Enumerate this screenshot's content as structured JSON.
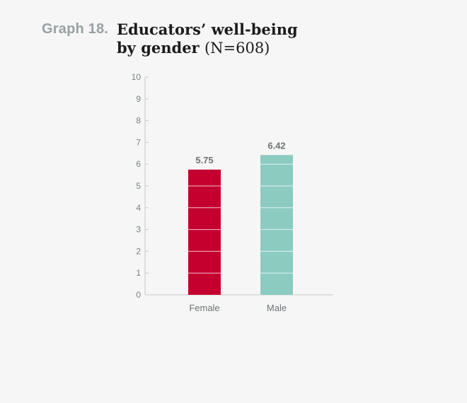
{
  "header": {
    "graph_number": "Graph 18.",
    "title_line1": "Educators’ well-being",
    "title_line2_main": "by gender",
    "title_line2_suffix": "(N=608)"
  },
  "chart_data": {
    "type": "bar",
    "categories": [
      "Female",
      "Male"
    ],
    "values": [
      5.75,
      6.42
    ],
    "value_labels": [
      "5.75",
      "6.42"
    ],
    "ylim": [
      0,
      10
    ],
    "yticks": [
      "0",
      "1",
      "2",
      "3",
      "4",
      "5",
      "6",
      "7",
      "8",
      "9",
      "10"
    ],
    "xlabel": "",
    "ylabel": "",
    "grid": false,
    "colors": [
      "#c4002f",
      "#8ccbc0"
    ],
    "axis_color": "#c9cccd",
    "bar_separator_color": "#ffffff"
  }
}
